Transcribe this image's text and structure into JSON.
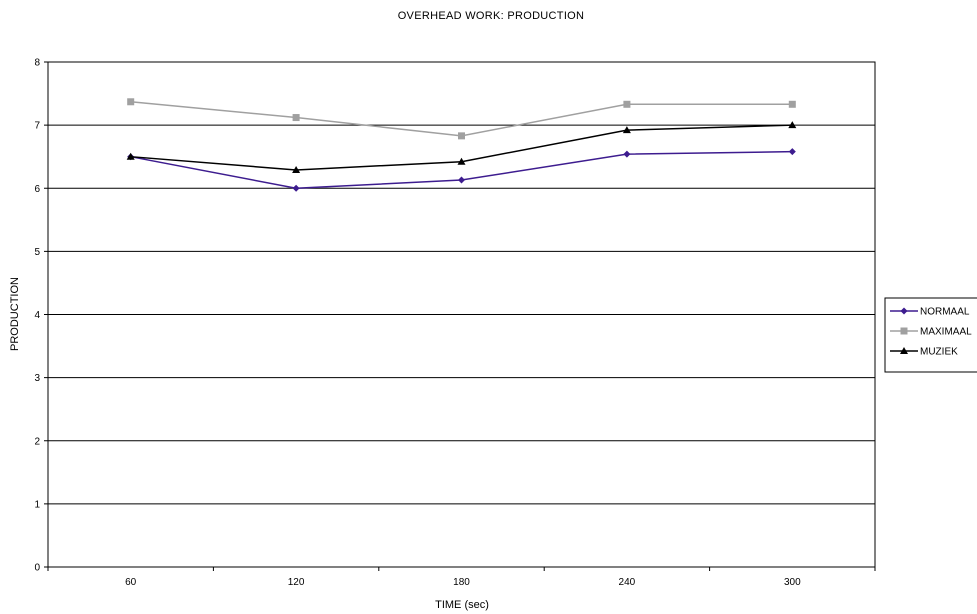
{
  "chart_data": {
    "type": "line",
    "title": "OVERHEAD WORK: PRODUCTION",
    "xlabel": "TIME (sec)",
    "ylabel": "PRODUCTION",
    "categories": [
      "60",
      "120",
      "180",
      "240",
      "300"
    ],
    "ylim": [
      0,
      8
    ],
    "yticks": [
      "0",
      "1",
      "2",
      "3",
      "4",
      "5",
      "6",
      "7",
      "8"
    ],
    "grid": true,
    "legend_position": "right",
    "series": [
      {
        "name": "NORMAAL",
        "values": [
          6.5,
          6.0,
          6.13,
          6.54,
          6.58
        ],
        "color": "#3d1c8f",
        "marker": "diamond"
      },
      {
        "name": "MAXIMAAL",
        "values": [
          7.37,
          7.12,
          6.83,
          7.33,
          7.33
        ],
        "color": "#a0a0a0",
        "marker": "square"
      },
      {
        "name": "MUZIEK",
        "values": [
          6.5,
          6.29,
          6.42,
          6.92,
          7.0
        ],
        "color": "#000000",
        "marker": "triangle"
      }
    ]
  }
}
